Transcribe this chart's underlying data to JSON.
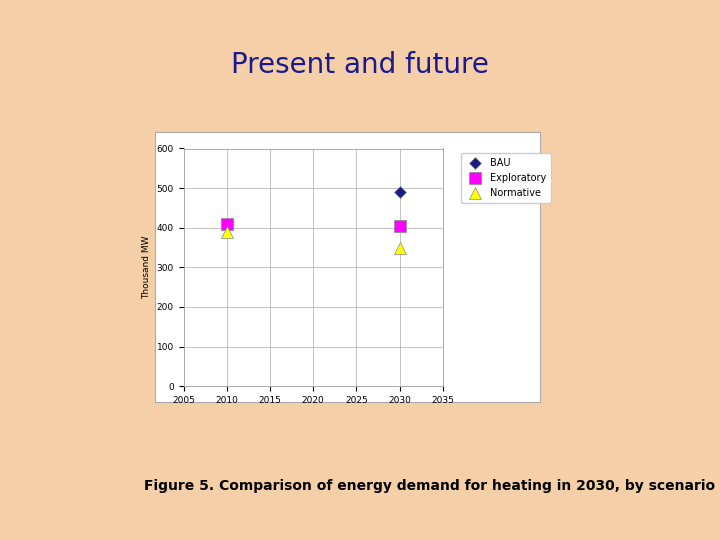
{
  "title": "Present and future",
  "title_color": "#1a1a8c",
  "title_fontsize": 20,
  "caption": "Figure 5. Comparison of energy demand for heating in 2030, by scenario",
  "caption_fontsize": 10,
  "background_color": "#f5cfa8",
  "chart_bg": "#ffffff",
  "ylabel": "Thousand MW",
  "xlabel_ticks": [
    2005,
    2010,
    2015,
    2020,
    2025,
    2030,
    2035
  ],
  "ylim": [
    0,
    600
  ],
  "yticks": [
    0,
    100,
    200,
    300,
    400,
    500,
    600
  ],
  "xlim": [
    2005,
    2035
  ],
  "series": {
    "BAU": {
      "x": [
        2030
      ],
      "y": [
        490
      ],
      "color": "#1a1a8c",
      "marker": "D",
      "markersize": 6
    },
    "Exploratory": {
      "x": [
        2010,
        2030
      ],
      "y": [
        410,
        405
      ],
      "color": "#ff00ff",
      "marker": "s",
      "markersize": 9
    },
    "Normative": {
      "x": [
        2010,
        2030
      ],
      "y": [
        390,
        350
      ],
      "color": "#ffff00",
      "marker": "^",
      "markersize": 8
    }
  },
  "legend_labels": [
    "BAU",
    "Exploratory",
    "Normative"
  ],
  "legend_colors": [
    "#1a1a8c",
    "#ff00ff",
    "#ffff00"
  ],
  "legend_markers": [
    "D",
    "s",
    "^"
  ],
  "legend_markersizes": [
    6,
    9,
    8
  ]
}
